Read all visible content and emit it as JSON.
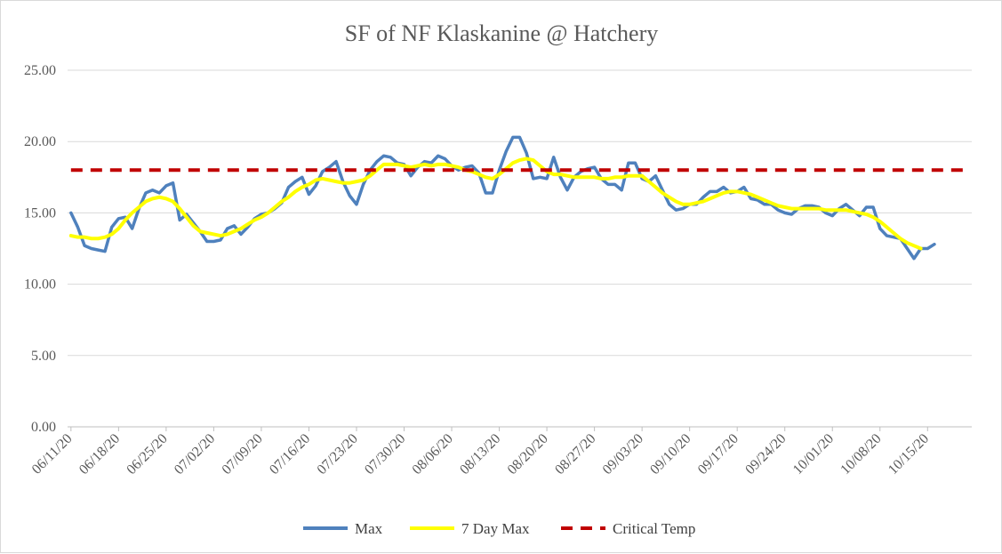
{
  "chart_data": {
    "type": "line",
    "title": "SF of NF Klaskanine @ Hatchery",
    "xlabel": "",
    "ylabel": "",
    "ylim": [
      0,
      25
    ],
    "y_ticks": [
      "0.00",
      "5.00",
      "10.00",
      "15.00",
      "20.00",
      "25.00"
    ],
    "x_tick_labels": [
      "06/11/20",
      "06/18/20",
      "06/25/20",
      "07/02/20",
      "07/09/20",
      "07/16/20",
      "07/23/20",
      "07/30/20",
      "08/06/20",
      "08/13/20",
      "08/20/20",
      "08/27/20",
      "09/03/20",
      "09/10/20",
      "09/17/20",
      "09/24/20",
      "10/01/20",
      "10/08/20",
      "10/15/20"
    ],
    "x_start": "06/11/20",
    "x_end": "10/21/20",
    "grid": true,
    "legend_position": "bottom",
    "series": [
      {
        "name": "Max",
        "color": "#4f81bd",
        "style": "solid",
        "values": [
          15.0,
          14.0,
          12.7,
          12.5,
          12.4,
          12.3,
          14.0,
          14.6,
          14.7,
          13.9,
          15.3,
          16.4,
          16.6,
          16.4,
          16.9,
          17.1,
          14.5,
          14.9,
          14.3,
          13.7,
          13.0,
          13.0,
          13.1,
          13.9,
          14.1,
          13.5,
          14.0,
          14.6,
          14.9,
          15.0,
          15.3,
          15.7,
          16.8,
          17.2,
          17.5,
          16.3,
          16.9,
          17.9,
          18.2,
          18.6,
          17.2,
          16.2,
          15.6,
          17.0,
          18.0,
          18.6,
          19.0,
          18.9,
          18.5,
          18.4,
          17.6,
          18.2,
          18.6,
          18.5,
          19.0,
          18.8,
          18.3,
          18.0,
          18.2,
          18.3,
          17.8,
          16.4,
          16.4,
          18.0,
          19.3,
          20.3,
          20.3,
          19.2,
          17.4,
          17.5,
          17.4,
          18.9,
          17.5,
          16.6,
          17.5,
          17.9,
          18.1,
          18.2,
          17.4,
          17.0,
          17.0,
          16.6,
          18.5,
          18.5,
          17.4,
          17.2,
          17.6,
          16.6,
          15.6,
          15.2,
          15.3,
          15.6,
          15.6,
          16.1,
          16.5,
          16.5,
          16.8,
          16.4,
          16.5,
          16.8,
          16.0,
          15.9,
          15.6,
          15.6,
          15.2,
          15.0,
          14.9,
          15.3,
          15.5,
          15.5,
          15.4,
          15.0,
          14.8,
          15.3,
          15.6,
          15.2,
          14.8,
          15.4,
          15.4,
          13.9,
          13.4,
          13.3,
          13.2,
          12.5,
          11.8,
          12.5,
          12.5,
          12.8
        ]
      },
      {
        "name": "7 Day Max",
        "color": "#ffff00",
        "style": "solid",
        "values": [
          13.4,
          13.3,
          13.3,
          13.2,
          13.2,
          13.3,
          13.5,
          13.9,
          14.5,
          15.0,
          15.4,
          15.8,
          16.0,
          16.1,
          16.0,
          15.8,
          15.3,
          14.7,
          14.1,
          13.7,
          13.6,
          13.5,
          13.4,
          13.5,
          13.7,
          13.9,
          14.2,
          14.5,
          14.7,
          15.0,
          15.4,
          15.8,
          16.1,
          16.5,
          16.8,
          17.0,
          17.3,
          17.4,
          17.3,
          17.2,
          17.1,
          17.1,
          17.2,
          17.3,
          17.6,
          18.0,
          18.4,
          18.4,
          18.4,
          18.3,
          18.2,
          18.3,
          18.4,
          18.3,
          18.4,
          18.4,
          18.3,
          18.2,
          18.0,
          17.9,
          17.7,
          17.5,
          17.4,
          17.7,
          18.1,
          18.5,
          18.7,
          18.8,
          18.7,
          18.3,
          17.9,
          17.7,
          17.7,
          17.6,
          17.5,
          17.5,
          17.5,
          17.5,
          17.4,
          17.4,
          17.5,
          17.5,
          17.6,
          17.6,
          17.6,
          17.2,
          16.8,
          16.4,
          16.1,
          15.8,
          15.6,
          15.6,
          15.7,
          15.8,
          16.0,
          16.2,
          16.4,
          16.5,
          16.5,
          16.4,
          16.3,
          16.1,
          15.9,
          15.7,
          15.5,
          15.4,
          15.3,
          15.3,
          15.3,
          15.3,
          15.3,
          15.2,
          15.2,
          15.2,
          15.2,
          15.1,
          15.0,
          14.9,
          14.7,
          14.4,
          14.0,
          13.6,
          13.2,
          12.9,
          12.7,
          12.5,
          null,
          null,
          null
        ]
      },
      {
        "name": "Critical Temp",
        "color": "#c00000",
        "style": "dashed",
        "constant": 18.0
      }
    ]
  }
}
